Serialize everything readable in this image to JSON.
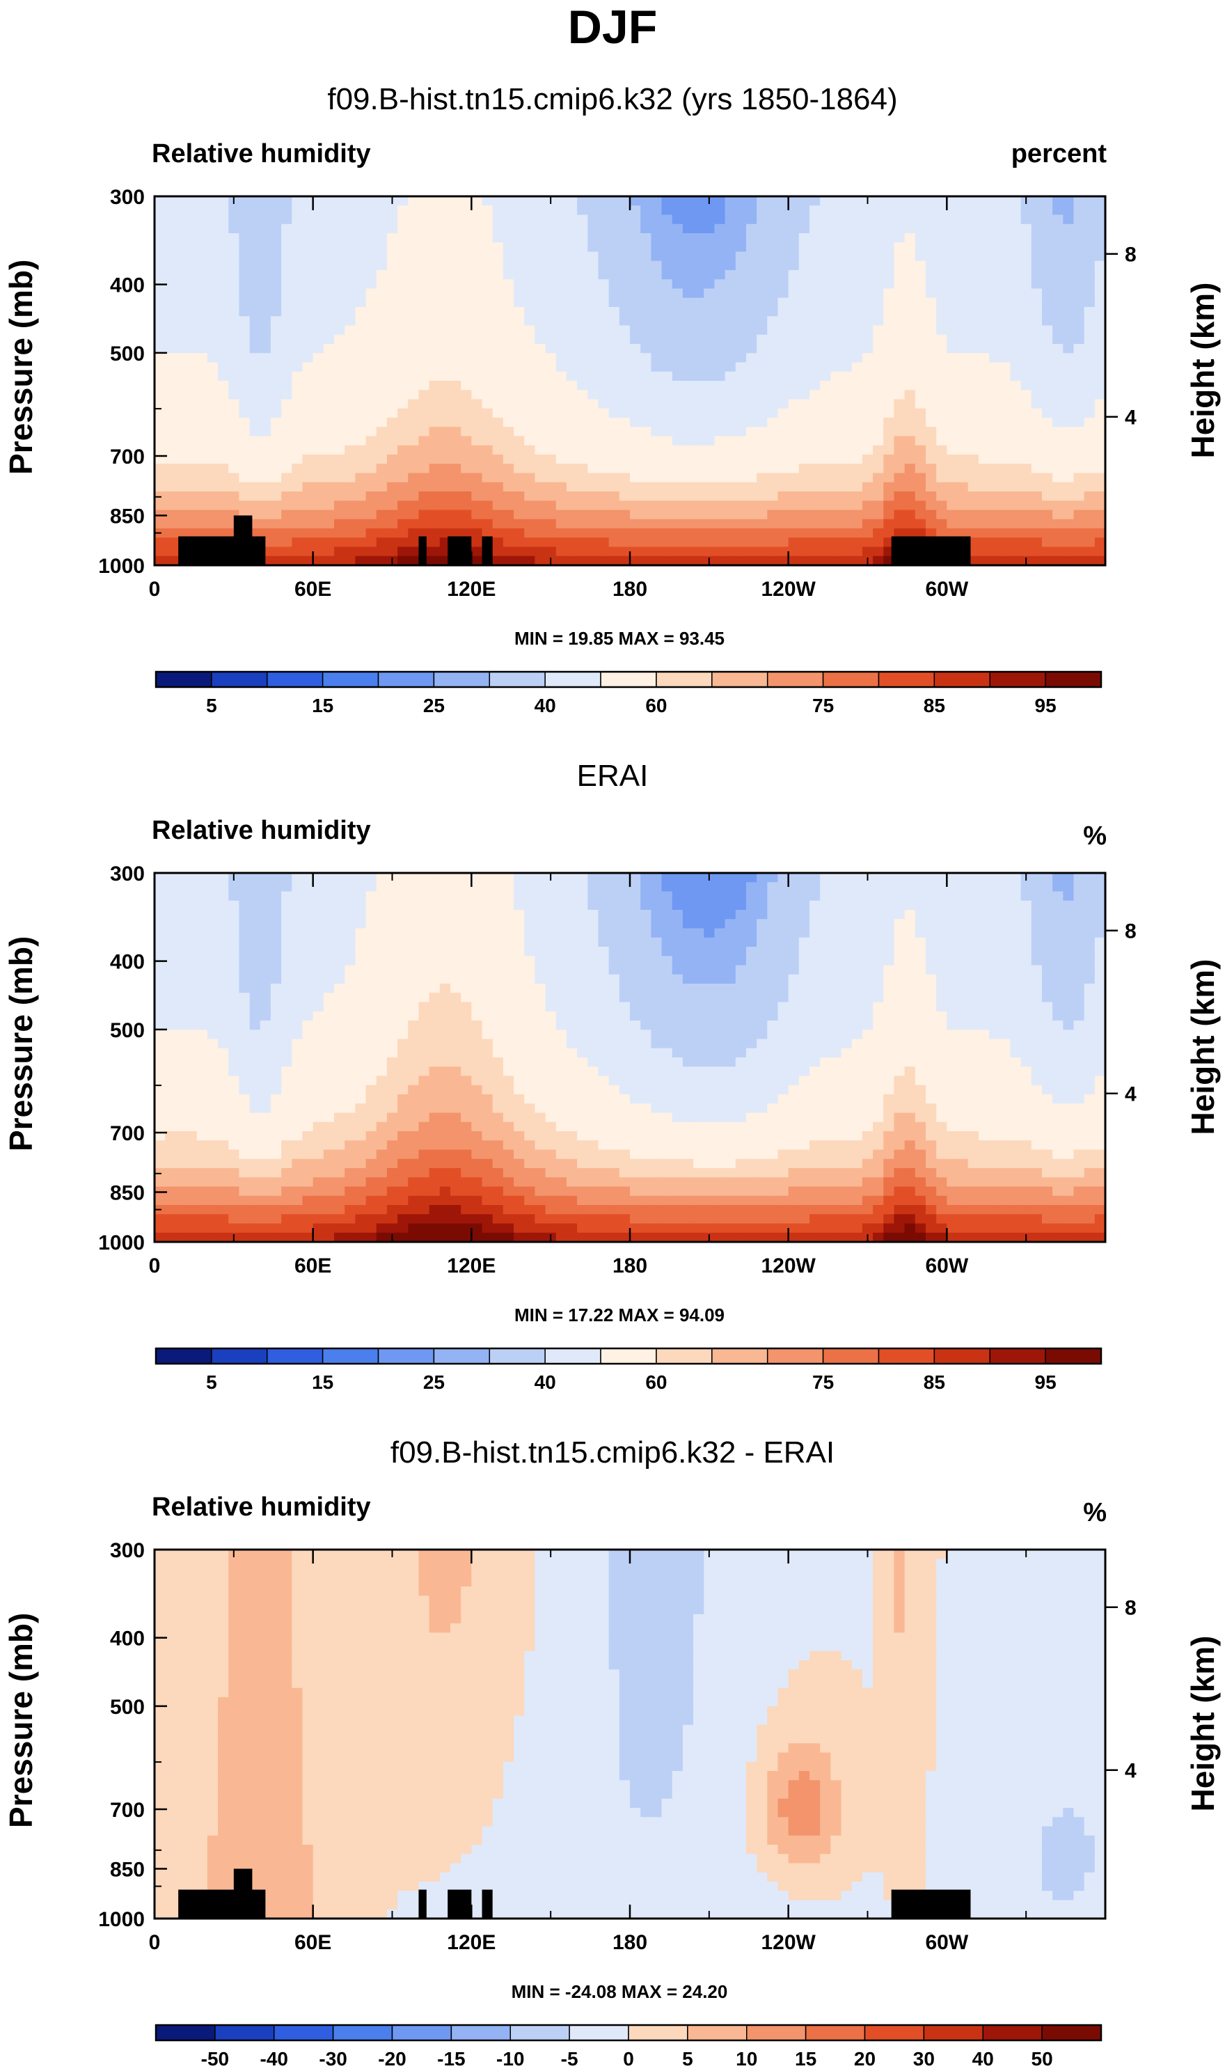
{
  "figure": {
    "title": "DJF"
  },
  "colors": {
    "palette": [
      "#0a1a7a",
      "#1a3fbf",
      "#2f5fe0",
      "#4b7fee",
      "#6e98f2",
      "#94b3f4",
      "#bcd0f6",
      "#dfe9fa",
      "#fff1e3",
      "#fcd8bd",
      "#f9b893",
      "#f3946c",
      "#ec7146",
      "#e24f27",
      "#c93313",
      "#9e1608",
      "#7a0b03"
    ],
    "land": "#000000"
  },
  "chart_data": [
    {
      "type": "heatmap",
      "title": "f09.B-hist.tn15.cmip6.k32 (yrs 1850-1864)",
      "variable": "Relative humidity",
      "units": "percent",
      "ylabel": "Pressure (mb)",
      "ylabel_right": "Height (km)",
      "y_ticks": [
        "300",
        "400",
        "500",
        "700",
        "850",
        "1000"
      ],
      "y_right_ticks": [
        "8",
        "4"
      ],
      "x_ticks": [
        "0",
        "60E",
        "120E",
        "180",
        "120W",
        "60W"
      ],
      "stats": "MIN = 19.85  MAX = 93.45",
      "levels": [
        "5",
        "15",
        "25",
        "40",
        "60",
        "75",
        "85",
        "95"
      ],
      "levels_all": [
        5,
        10,
        15,
        20,
        25,
        30,
        40,
        50,
        60,
        65,
        70,
        75,
        80,
        85,
        90,
        95
      ],
      "min": 19.85,
      "max": 93.45
    },
    {
      "type": "heatmap",
      "title": "ERAI",
      "variable": "Relative humidity",
      "units": "%",
      "ylabel": "Pressure (mb)",
      "ylabel_right": "Height (km)",
      "y_ticks": [
        "300",
        "400",
        "500",
        "700",
        "850",
        "1000"
      ],
      "y_right_ticks": [
        "8",
        "4"
      ],
      "x_ticks": [
        "0",
        "60E",
        "120E",
        "180",
        "120W",
        "60W"
      ],
      "stats": "MIN = 17.22  MAX = 94.09",
      "levels": [
        "5",
        "15",
        "25",
        "40",
        "60",
        "75",
        "85",
        "95"
      ],
      "levels_all": [
        5,
        10,
        15,
        20,
        25,
        30,
        40,
        50,
        60,
        65,
        70,
        75,
        80,
        85,
        90,
        95
      ],
      "min": 17.22,
      "max": 94.09
    },
    {
      "type": "heatmap",
      "title": "f09.B-hist.tn15.cmip6.k32 - ERAI",
      "variable": "Relative humidity",
      "units": "%",
      "ylabel": "Pressure (mb)",
      "ylabel_right": "Height (km)",
      "y_ticks": [
        "300",
        "400",
        "500",
        "700",
        "850",
        "1000"
      ],
      "y_right_ticks": [
        "8",
        "4"
      ],
      "x_ticks": [
        "0",
        "60E",
        "120E",
        "180",
        "120W",
        "60W"
      ],
      "stats": "MIN = -24.08  MAX = 24.20",
      "levels": [
        "-50",
        "-40",
        "-30",
        "-20",
        "-15",
        "-10",
        "-5",
        "0",
        "5",
        "10",
        "15",
        "20",
        "30",
        "40",
        "50"
      ],
      "levels_all": [
        -50,
        -40,
        -30,
        -20,
        -15,
        -10,
        -5,
        0,
        5,
        10,
        15,
        20,
        30,
        40,
        50
      ],
      "min": -24.08,
      "max": 24.2
    }
  ]
}
